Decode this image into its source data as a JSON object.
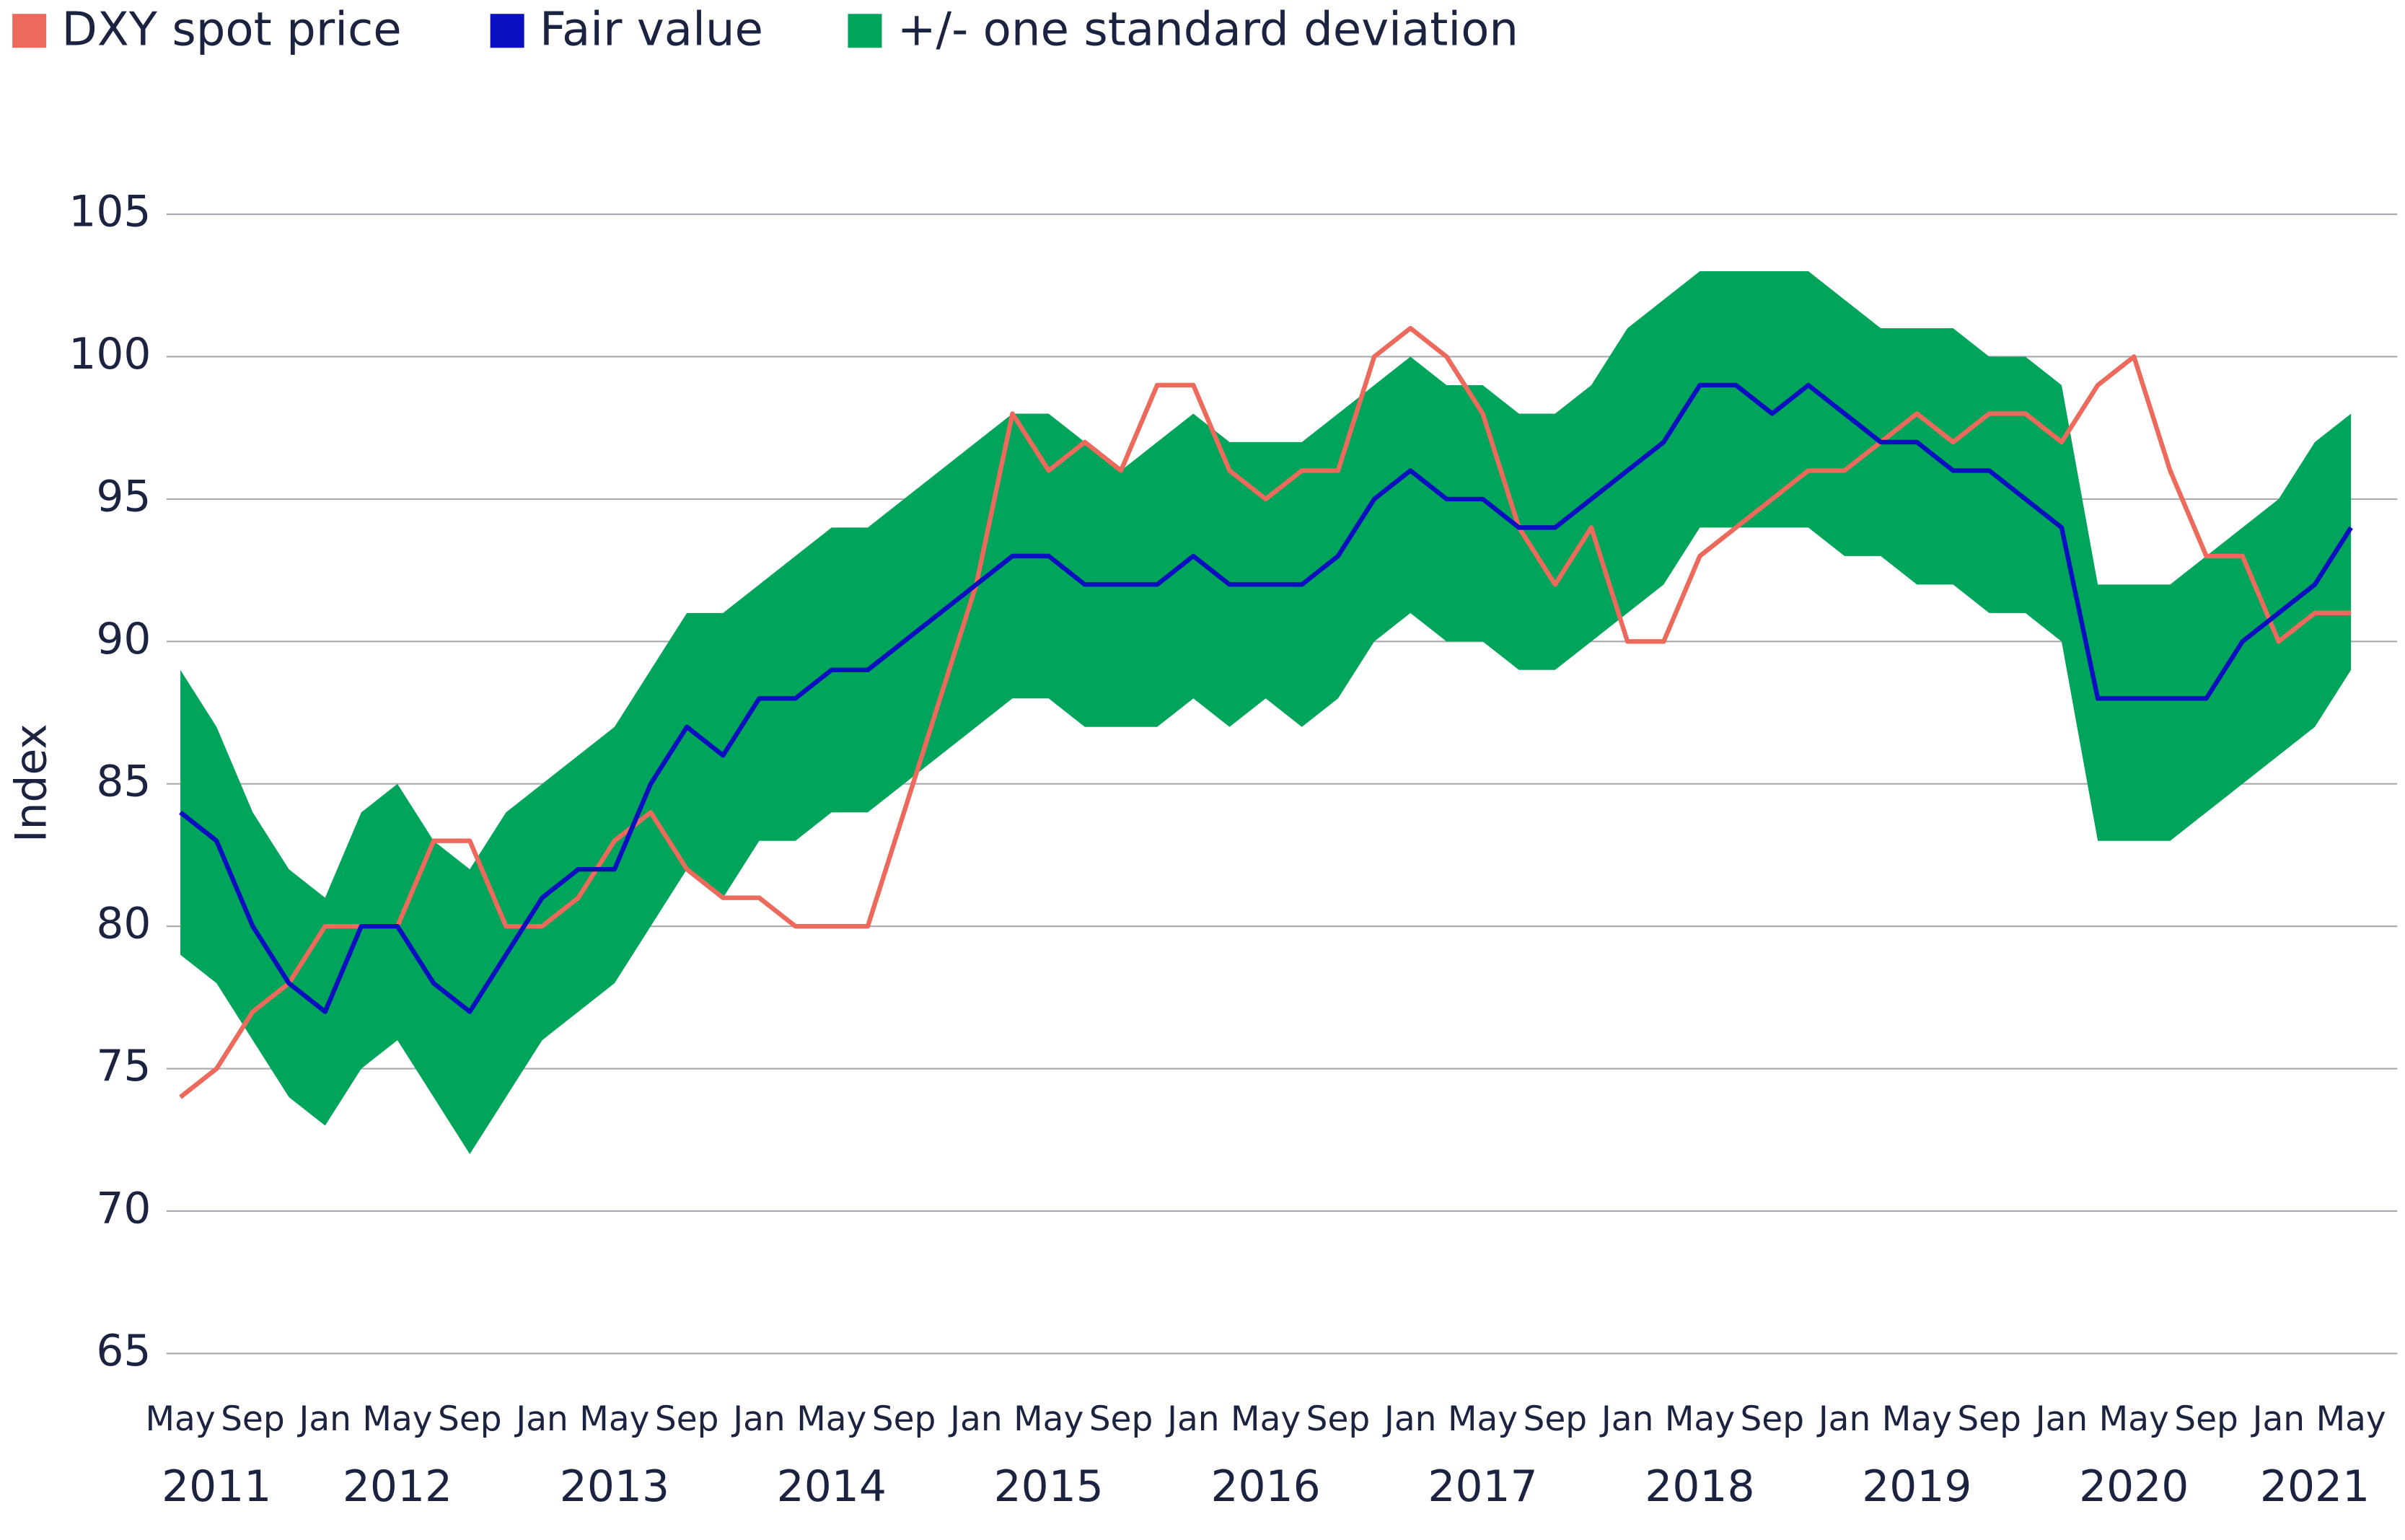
{
  "chart_data": {
    "type": "line",
    "y_label": "Index",
    "x": [
      "2011-05",
      "2011-07",
      "2011-09",
      "2011-11",
      "2012-01",
      "2012-03",
      "2012-05",
      "2012-07",
      "2012-09",
      "2012-11",
      "2013-01",
      "2013-03",
      "2013-05",
      "2013-07",
      "2013-09",
      "2013-11",
      "2014-01",
      "2014-03",
      "2014-05",
      "2014-07",
      "2014-09",
      "2014-11",
      "2015-01",
      "2015-03",
      "2015-05",
      "2015-07",
      "2015-09",
      "2015-11",
      "2016-01",
      "2016-03",
      "2016-05",
      "2016-07",
      "2016-09",
      "2016-11",
      "2017-01",
      "2017-03",
      "2017-05",
      "2017-07",
      "2017-09",
      "2017-11",
      "2018-01",
      "2018-03",
      "2018-05",
      "2018-07",
      "2018-09",
      "2018-11",
      "2019-01",
      "2019-03",
      "2019-05",
      "2019-07",
      "2019-09",
      "2019-11",
      "2020-01",
      "2020-03",
      "2020-05",
      "2020-07",
      "2020-09",
      "2020-11",
      "2021-01",
      "2021-03",
      "2021-05"
    ],
    "series": [
      {
        "name": "DXY spot price",
        "color": "#ec6a5c",
        "kind": "line",
        "values": [
          74,
          75,
          77,
          78,
          80,
          80,
          80,
          83,
          83,
          80,
          80,
          81,
          83,
          84,
          82,
          81,
          81,
          80,
          80,
          80,
          84,
          88,
          92,
          98,
          96,
          97,
          96,
          99,
          99,
          96,
          95,
          96,
          96,
          100,
          101,
          100,
          98,
          94,
          92,
          94,
          90,
          90,
          93,
          94,
          95,
          96,
          96,
          97,
          98,
          97,
          98,
          98,
          97,
          99,
          100,
          96,
          93,
          93,
          90,
          91,
          91
        ]
      },
      {
        "name": "Fair value",
        "color": "#0a10c0",
        "kind": "line",
        "values": [
          84,
          83,
          80,
          78,
          77,
          80,
          80,
          78,
          77,
          79,
          81,
          82,
          82,
          85,
          87,
          86,
          88,
          88,
          89,
          89,
          90,
          91,
          92,
          93,
          93,
          92,
          92,
          92,
          93,
          92,
          92,
          92,
          93,
          95,
          96,
          95,
          95,
          94,
          94,
          95,
          96,
          97,
          99,
          99,
          98,
          99,
          98,
          97,
          97,
          96,
          96,
          95,
          94,
          88,
          88,
          88,
          88,
          90,
          91,
          92,
          94
        ]
      },
      {
        "name": "+/- one standard deviation",
        "color": "#00a55b",
        "kind": "band",
        "low": [
          79,
          78,
          76,
          74,
          73,
          75,
          76,
          74,
          72,
          74,
          76,
          77,
          78,
          80,
          82,
          81,
          83,
          83,
          84,
          84,
          85,
          86,
          87,
          88,
          88,
          87,
          87,
          87,
          88,
          87,
          88,
          87,
          88,
          90,
          91,
          90,
          90,
          89,
          89,
          90,
          91,
          92,
          94,
          94,
          94,
          94,
          93,
          93,
          92,
          92,
          91,
          91,
          90,
          83,
          83,
          83,
          84,
          85,
          86,
          87,
          89
        ],
        "high": [
          89,
          87,
          84,
          82,
          81,
          84,
          85,
          83,
          82,
          84,
          85,
          86,
          87,
          89,
          91,
          91,
          92,
          93,
          94,
          94,
          95,
          96,
          97,
          98,
          98,
          97,
          96,
          97,
          98,
          97,
          97,
          97,
          98,
          99,
          100,
          99,
          99,
          98,
          98,
          99,
          101,
          102,
          103,
          103,
          103,
          103,
          102,
          101,
          101,
          101,
          100,
          100,
          99,
          92,
          92,
          92,
          93,
          94,
          95,
          97,
          98
        ]
      }
    ],
    "ylim": [
      65,
      105
    ],
    "yticks": [
      65,
      70,
      75,
      80,
      85,
      90,
      95,
      100,
      105
    ],
    "xlim": [
      "2011-05",
      "2021-05"
    ],
    "xticks": [
      {
        "value": "2011-05",
        "label": "May"
      },
      {
        "value": "2011-09",
        "label": "Sep"
      },
      {
        "value": "2012-01",
        "label": "Jan"
      },
      {
        "value": "2012-05",
        "label": "May"
      },
      {
        "value": "2012-09",
        "label": "Sep"
      },
      {
        "value": "2013-01",
        "label": "Jan"
      },
      {
        "value": "2013-05",
        "label": "May"
      },
      {
        "value": "2013-09",
        "label": "Sep"
      },
      {
        "value": "2014-01",
        "label": "Jan"
      },
      {
        "value": "2014-05",
        "label": "May"
      },
      {
        "value": "2014-09",
        "label": "Sep"
      },
      {
        "value": "2015-01",
        "label": "Jan"
      },
      {
        "value": "2015-05",
        "label": "May"
      },
      {
        "value": "2015-09",
        "label": "Sep"
      },
      {
        "value": "2016-01",
        "label": "Jan"
      },
      {
        "value": "2016-05",
        "label": "May"
      },
      {
        "value": "2016-09",
        "label": "Sep"
      },
      {
        "value": "2017-01",
        "label": "Jan"
      },
      {
        "value": "2017-05",
        "label": "May"
      },
      {
        "value": "2017-09",
        "label": "Sep"
      },
      {
        "value": "2018-01",
        "label": "Jan"
      },
      {
        "value": "2018-05",
        "label": "May"
      },
      {
        "value": "2018-09",
        "label": "Sep"
      },
      {
        "value": "2019-01",
        "label": "Jan"
      },
      {
        "value": "2019-05",
        "label": "May"
      },
      {
        "value": "2019-09",
        "label": "Sep"
      },
      {
        "value": "2020-01",
        "label": "Jan"
      },
      {
        "value": "2020-05",
        "label": "May"
      },
      {
        "value": "2020-09",
        "label": "Sep"
      },
      {
        "value": "2021-01",
        "label": "Jan"
      },
      {
        "value": "2021-05",
        "label": "May"
      }
    ],
    "year_labels": [
      {
        "value": "2011-07",
        "label": "2011"
      },
      {
        "value": "2012-05",
        "label": "2012"
      },
      {
        "value": "2013-05",
        "label": "2013"
      },
      {
        "value": "2014-05",
        "label": "2014"
      },
      {
        "value": "2015-05",
        "label": "2015"
      },
      {
        "value": "2016-05",
        "label": "2016"
      },
      {
        "value": "2017-05",
        "label": "2017"
      },
      {
        "value": "2018-05",
        "label": "2018"
      },
      {
        "value": "2019-05",
        "label": "2019"
      },
      {
        "value": "2020-05",
        "label": "2020"
      },
      {
        "value": "2021-03",
        "label": "2021"
      }
    ],
    "grid": true,
    "legend": "top-left"
  }
}
